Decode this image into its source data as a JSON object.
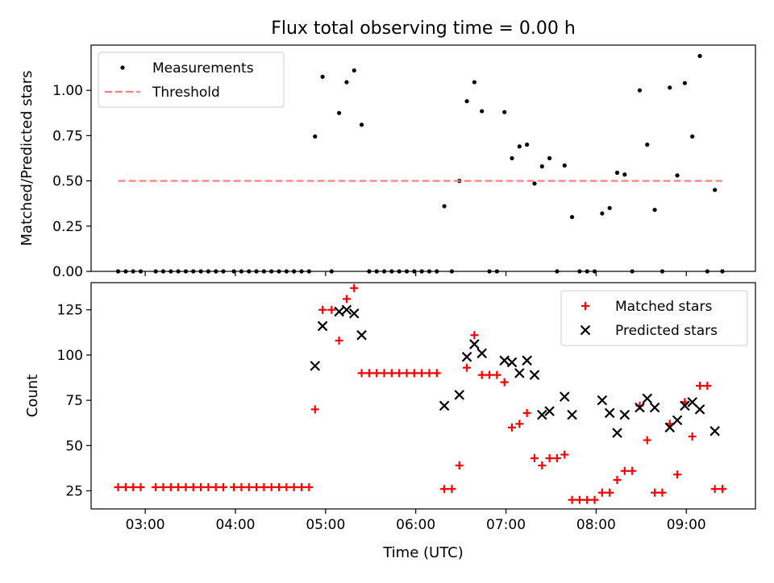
{
  "title": "Flux total observing time = 0.00 h",
  "chart_data": [
    {
      "type": "scatter",
      "ylabel": "Matched/Predicted stars",
      "xlabel": "",
      "xlim": [
        "02:24",
        "09:46"
      ],
      "ylim": [
        0,
        1.25
      ],
      "yticks": [
        0.0,
        0.25,
        0.5,
        0.75,
        1.0
      ],
      "ytick_labels": [
        "0.00",
        "0.25",
        "0.50",
        "0.75",
        "1.00"
      ],
      "xticks": [
        "03:00",
        "04:00",
        "05:00",
        "06:00",
        "07:00",
        "08:00",
        "09:00"
      ],
      "legend_position": "top-left",
      "series": [
        {
          "name": "Measurements",
          "marker": "dot",
          "color": "#000000",
          "points": [
            [
              "02:42",
              0
            ],
            [
              "02:47",
              0
            ],
            [
              "02:52",
              0
            ],
            [
              "02:57",
              0
            ],
            [
              "03:07",
              0
            ],
            [
              "03:12",
              0
            ],
            [
              "03:17",
              0
            ],
            [
              "03:22",
              0
            ],
            [
              "03:27",
              0
            ],
            [
              "03:32",
              0
            ],
            [
              "03:37",
              0
            ],
            [
              "03:42",
              0
            ],
            [
              "03:47",
              0
            ],
            [
              "03:52",
              0
            ],
            [
              "03:59",
              0
            ],
            [
              "04:04",
              0
            ],
            [
              "04:09",
              0
            ],
            [
              "04:14",
              0
            ],
            [
              "04:19",
              0
            ],
            [
              "04:24",
              0
            ],
            [
              "04:29",
              0
            ],
            [
              "04:34",
              0
            ],
            [
              "04:39",
              0
            ],
            [
              "04:44",
              0
            ],
            [
              "04:49",
              0
            ],
            [
              "04:53",
              0.745
            ],
            [
              "04:58",
              1.075
            ],
            [
              "05:04",
              0
            ],
            [
              "05:09",
              0.875
            ],
            [
              "05:14",
              1.045
            ],
            [
              "05:19",
              1.11
            ],
            [
              "05:24",
              0.81
            ],
            [
              "05:29",
              0
            ],
            [
              "05:34",
              0
            ],
            [
              "05:39",
              0
            ],
            [
              "05:44",
              0
            ],
            [
              "05:49",
              0
            ],
            [
              "05:54",
              0
            ],
            [
              "05:59",
              0
            ],
            [
              "06:04",
              0
            ],
            [
              "06:09",
              0
            ],
            [
              "06:14",
              0
            ],
            [
              "06:19",
              0.36
            ],
            [
              "06:24",
              0
            ],
            [
              "06:29",
              0.5
            ],
            [
              "06:34",
              0.94
            ],
            [
              "06:39",
              1.045
            ],
            [
              "06:44",
              0.885
            ],
            [
              "06:49",
              0
            ],
            [
              "06:54",
              0
            ],
            [
              "06:59",
              0.88
            ],
            [
              "07:04",
              0.625
            ],
            [
              "07:09",
              0.69
            ],
            [
              "07:14",
              0.7
            ],
            [
              "07:19",
              0.485
            ],
            [
              "07:24",
              0.58
            ],
            [
              "07:29",
              0.625
            ],
            [
              "07:34",
              0
            ],
            [
              "07:39",
              0.585
            ],
            [
              "07:44",
              0.3
            ],
            [
              "07:49",
              0
            ],
            [
              "07:54",
              0
            ],
            [
              "07:59",
              0
            ],
            [
              "08:04",
              0.32
            ],
            [
              "08:09",
              0.35
            ],
            [
              "08:14",
              0.545
            ],
            [
              "08:19",
              0.535
            ],
            [
              "08:24",
              0
            ],
            [
              "08:29",
              1.0
            ],
            [
              "08:34",
              0.7
            ],
            [
              "08:39",
              0.34
            ],
            [
              "08:44",
              0
            ],
            [
              "08:49",
              1.015
            ],
            [
              "08:54",
              0.53
            ],
            [
              "08:59",
              1.04
            ],
            [
              "09:04",
              0.745
            ],
            [
              "09:09",
              1.19
            ],
            [
              "09:14",
              0
            ],
            [
              "09:19",
              0.45
            ],
            [
              "09:24",
              0
            ]
          ]
        },
        {
          "name": "Threshold",
          "style": "dashed",
          "color": "#ff8080",
          "points": [
            [
              "02:42",
              0.5
            ],
            [
              "09:24",
              0.5
            ]
          ]
        }
      ]
    },
    {
      "type": "scatter",
      "xlabel": "Time (UTC)",
      "ylabel": "Count",
      "xlim": [
        "02:24",
        "09:46"
      ],
      "ylim": [
        15,
        140
      ],
      "yticks": [
        25,
        50,
        75,
        100,
        125
      ],
      "xticks": [
        "03:00",
        "04:00",
        "05:00",
        "06:00",
        "07:00",
        "08:00",
        "09:00"
      ],
      "legend_position": "top-right",
      "series": [
        {
          "name": "Matched stars",
          "marker": "plus",
          "color": "#ff0000",
          "points": [
            [
              "02:42",
              27
            ],
            [
              "02:47",
              27
            ],
            [
              "02:52",
              27
            ],
            [
              "02:57",
              27
            ],
            [
              "03:07",
              27
            ],
            [
              "03:12",
              27
            ],
            [
              "03:17",
              27
            ],
            [
              "03:22",
              27
            ],
            [
              "03:27",
              27
            ],
            [
              "03:32",
              27
            ],
            [
              "03:37",
              27
            ],
            [
              "03:42",
              27
            ],
            [
              "03:47",
              27
            ],
            [
              "03:52",
              27
            ],
            [
              "03:59",
              27
            ],
            [
              "04:04",
              27
            ],
            [
              "04:09",
              27
            ],
            [
              "04:14",
              27
            ],
            [
              "04:19",
              27
            ],
            [
              "04:24",
              27
            ],
            [
              "04:29",
              27
            ],
            [
              "04:34",
              27
            ],
            [
              "04:39",
              27
            ],
            [
              "04:44",
              27
            ],
            [
              "04:49",
              27
            ],
            [
              "04:53",
              70
            ],
            [
              "04:58",
              125
            ],
            [
              "05:04",
              125
            ],
            [
              "05:09",
              108
            ],
            [
              "05:14",
              131
            ],
            [
              "05:19",
              137
            ],
            [
              "05:24",
              90
            ],
            [
              "05:29",
              90
            ],
            [
              "05:34",
              90
            ],
            [
              "05:39",
              90
            ],
            [
              "05:44",
              90
            ],
            [
              "05:49",
              90
            ],
            [
              "05:54",
              90
            ],
            [
              "05:59",
              90
            ],
            [
              "06:04",
              90
            ],
            [
              "06:09",
              90
            ],
            [
              "06:14",
              90
            ],
            [
              "06:19",
              26
            ],
            [
              "06:24",
              26
            ],
            [
              "06:29",
              39
            ],
            [
              "06:34",
              93
            ],
            [
              "06:39",
              111
            ],
            [
              "06:44",
              89
            ],
            [
              "06:49",
              89
            ],
            [
              "06:54",
              89
            ],
            [
              "06:59",
              85
            ],
            [
              "07:04",
              60
            ],
            [
              "07:09",
              62
            ],
            [
              "07:14",
              68
            ],
            [
              "07:19",
              43
            ],
            [
              "07:24",
              39
            ],
            [
              "07:29",
              43
            ],
            [
              "07:34",
              43
            ],
            [
              "07:39",
              45
            ],
            [
              "07:44",
              20
            ],
            [
              "07:49",
              20
            ],
            [
              "07:54",
              20
            ],
            [
              "07:59",
              20
            ],
            [
              "08:04",
              24
            ],
            [
              "08:09",
              24
            ],
            [
              "08:14",
              31
            ],
            [
              "08:19",
              36
            ],
            [
              "08:24",
              36
            ],
            [
              "08:29",
              72
            ],
            [
              "08:34",
              53
            ],
            [
              "08:39",
              24
            ],
            [
              "08:44",
              24
            ],
            [
              "08:49",
              62
            ],
            [
              "08:54",
              34
            ],
            [
              "08:59",
              74
            ],
            [
              "09:04",
              55
            ],
            [
              "09:09",
              83
            ],
            [
              "09:14",
              83
            ],
            [
              "09:19",
              26
            ],
            [
              "09:24",
              26
            ]
          ]
        },
        {
          "name": "Predicted stars",
          "marker": "x",
          "color": "#000000",
          "points": [
            [
              "04:53",
              94
            ],
            [
              "04:58",
              116
            ],
            [
              "05:09",
              124
            ],
            [
              "05:14",
              125
            ],
            [
              "05:19",
              123
            ],
            [
              "05:24",
              111
            ],
            [
              "06:19",
              72
            ],
            [
              "06:29",
              78
            ],
            [
              "06:34",
              99
            ],
            [
              "06:39",
              106
            ],
            [
              "06:44",
              101
            ],
            [
              "06:59",
              97
            ],
            [
              "07:04",
              96
            ],
            [
              "07:09",
              90
            ],
            [
              "07:14",
              97
            ],
            [
              "07:19",
              89
            ],
            [
              "07:24",
              67
            ],
            [
              "07:29",
              69
            ],
            [
              "07:39",
              77
            ],
            [
              "07:44",
              67
            ],
            [
              "08:04",
              75
            ],
            [
              "08:09",
              68
            ],
            [
              "08:14",
              57
            ],
            [
              "08:19",
              67
            ],
            [
              "08:29",
              71
            ],
            [
              "08:34",
              76
            ],
            [
              "08:39",
              71
            ],
            [
              "08:49",
              60
            ],
            [
              "08:54",
              64
            ],
            [
              "08:59",
              72
            ],
            [
              "09:04",
              74
            ],
            [
              "09:09",
              70
            ],
            [
              "09:19",
              58
            ]
          ]
        }
      ]
    }
  ]
}
